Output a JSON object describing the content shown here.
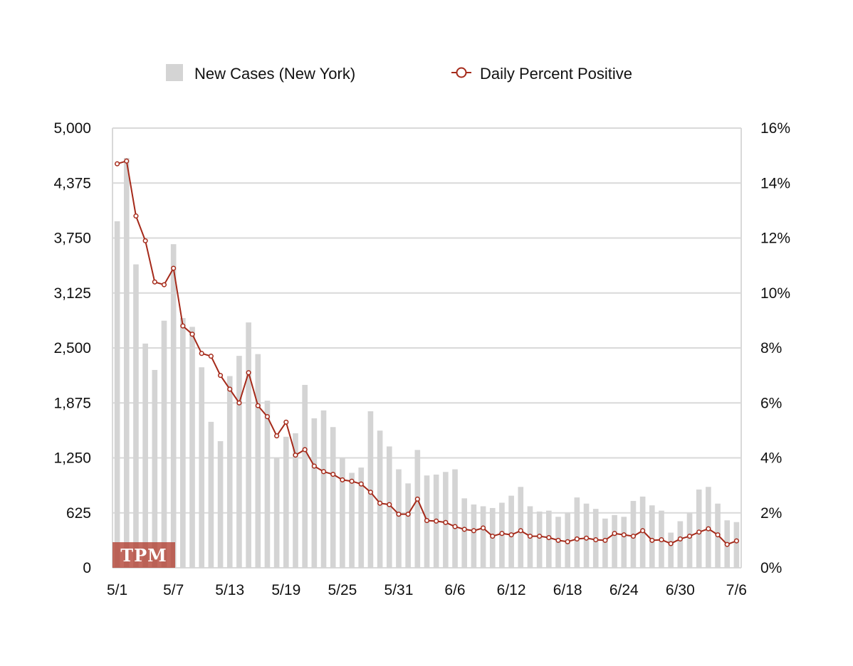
{
  "colors": {
    "bar": "#d4d4d4",
    "line": "#a52a1a",
    "marker_fill": "#ffffff",
    "grid": "#d9d9d9",
    "watermark_bg": "#b5483a"
  },
  "watermark": "TPM",
  "chart_data": {
    "type": "bar+line",
    "title": "",
    "legend": {
      "position": "top",
      "items": [
        {
          "label": "New Cases (New York)",
          "icon": "bar-swatch"
        },
        {
          "label": "Daily Percent Positive",
          "icon": "line-marker"
        }
      ]
    },
    "grid": true,
    "x_tick_labels": [
      "5/1",
      "5/7",
      "5/13",
      "5/19",
      "5/25",
      "5/31",
      "6/6",
      "6/12",
      "6/18",
      "6/24",
      "6/30",
      "7/6"
    ],
    "y_left": {
      "label": "",
      "ylim": [
        0,
        5000
      ],
      "ticks": [
        "0",
        "625",
        "1,250",
        "1,875",
        "2,500",
        "3,125",
        "3,750",
        "4,375",
        "5,000"
      ]
    },
    "y_right": {
      "label": "",
      "ylim": [
        0,
        16
      ],
      "ticks": [
        "0%",
        "2%",
        "4%",
        "6%",
        "8%",
        "10%",
        "12%",
        "14%",
        "16%"
      ]
    },
    "categories": [
      "5/1",
      "5/2",
      "5/3",
      "5/4",
      "5/5",
      "5/6",
      "5/7",
      "5/8",
      "5/9",
      "5/10",
      "5/11",
      "5/12",
      "5/13",
      "5/14",
      "5/15",
      "5/16",
      "5/17",
      "5/18",
      "5/19",
      "5/20",
      "5/21",
      "5/22",
      "5/23",
      "5/24",
      "5/25",
      "5/26",
      "5/27",
      "5/28",
      "5/29",
      "5/30",
      "5/31",
      "6/1",
      "6/2",
      "6/3",
      "6/4",
      "6/5",
      "6/6",
      "6/7",
      "6/8",
      "6/9",
      "6/10",
      "6/11",
      "6/12",
      "6/13",
      "6/14",
      "6/15",
      "6/16",
      "6/17",
      "6/18",
      "6/19",
      "6/20",
      "6/21",
      "6/22",
      "6/23",
      "6/24",
      "6/25",
      "6/26",
      "6/27",
      "6/28",
      "6/29",
      "6/30",
      "7/1",
      "7/2",
      "7/3",
      "7/4",
      "7/5",
      "7/6"
    ],
    "series": [
      {
        "name": "New Cases (New York)",
        "type": "bar",
        "axis": "left",
        "values": [
          3940,
          4660,
          3450,
          2550,
          2250,
          2810,
          3680,
          2840,
          2740,
          2280,
          1660,
          1440,
          2180,
          2410,
          2790,
          2430,
          1900,
          1250,
          1490,
          1530,
          2080,
          1700,
          1790,
          1600,
          1250,
          1080,
          1140,
          1780,
          1560,
          1380,
          1120,
          960,
          1340,
          1050,
          1060,
          1090,
          1120,
          790,
          720,
          700,
          680,
          740,
          820,
          920,
          700,
          640,
          650,
          580,
          620,
          800,
          730,
          670,
          560,
          600,
          580,
          760,
          810,
          710,
          650,
          400,
          530,
          620,
          890,
          920,
          730,
          540,
          520
        ]
      },
      {
        "name": "Daily Percent Positive",
        "type": "line",
        "axis": "right",
        "values": [
          14.7,
          14.8,
          12.8,
          11.9,
          10.4,
          10.3,
          10.9,
          8.8,
          8.5,
          7.8,
          7.7,
          7.0,
          6.5,
          6.0,
          7.1,
          5.9,
          5.5,
          4.8,
          5.3,
          4.1,
          4.3,
          3.7,
          3.5,
          3.4,
          3.2,
          3.15,
          3.05,
          2.75,
          2.35,
          2.3,
          1.95,
          1.95,
          2.5,
          1.72,
          1.7,
          1.65,
          1.5,
          1.4,
          1.35,
          1.45,
          1.15,
          1.25,
          1.2,
          1.35,
          1.15,
          1.15,
          1.1,
          1.0,
          0.95,
          1.05,
          1.08,
          1.02,
          1.0,
          1.25,
          1.2,
          1.15,
          1.35,
          1.0,
          1.02,
          0.88,
          1.05,
          1.15,
          1.3,
          1.42,
          1.2,
          0.85,
          0.98
        ]
      }
    ]
  }
}
